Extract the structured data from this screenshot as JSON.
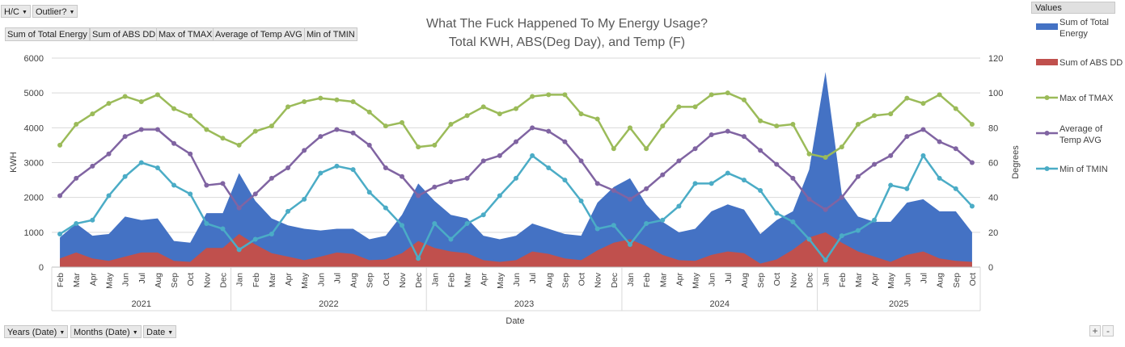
{
  "filters": {
    "hc_label": "H/C",
    "outlier_label": "Outlier?",
    "years_label": "Years (Date)",
    "months_label": "Months (Date)",
    "date_label": "Date"
  },
  "value_buttons": [
    "Sum of Total Energy",
    "Sum of ABS DD",
    "Max of TMAX",
    "Average of Temp AVG",
    "Min of TMIN"
  ],
  "legend_header": "Values",
  "zoom": {
    "plus": "+",
    "minus": "-"
  },
  "colors": {
    "energy": "#4472c4",
    "absdd": "#c0504d",
    "tmax": "#9bbb59",
    "tavg": "#8064a2",
    "tmin": "#4bacc6"
  },
  "chart_data": {
    "type": "area+line",
    "title_line1": "What The Fuck Happened To My Energy Usage?",
    "title_line2": "Total KWH, ABS(Deg Day), and Temp (F)",
    "xlabel": "Date",
    "ylabel_left": "KWH",
    "ylabel_right": "Degrees",
    "ylim_left": [
      0,
      6000
    ],
    "ylim_right": [
      0,
      120
    ],
    "yticks_left": [
      "0",
      "1000",
      "2000",
      "3000",
      "4000",
      "5000",
      "6000"
    ],
    "yticks_right": [
      "0",
      "20",
      "40",
      "60",
      "80",
      "100",
      "120"
    ],
    "months": [
      "Feb",
      "Mar",
      "Apr",
      "May",
      "Jun",
      "Jul",
      "Aug",
      "Sep",
      "Oct",
      "Nov",
      "Dec",
      "Jan",
      "Feb",
      "Mar",
      "Apr",
      "May",
      "Jun",
      "Jul",
      "Aug",
      "Sep",
      "Oct",
      "Nov",
      "Dec",
      "Jan",
      "Feb",
      "Mar",
      "Apr",
      "May",
      "Jun",
      "Jul",
      "Aug",
      "Sep",
      "Oct",
      "Nov",
      "Dec",
      "Jan",
      "Feb",
      "Mar",
      "Apr",
      "May",
      "Jun",
      "Jul",
      "Aug",
      "Sep",
      "Oct",
      "Nov",
      "Dec",
      "Jan",
      "Feb",
      "Mar",
      "Apr",
      "May",
      "Jun",
      "Jul",
      "Aug",
      "Sep",
      "Oct"
    ],
    "years": [
      {
        "label": "2021",
        "start": 0,
        "count": 11
      },
      {
        "label": "2022",
        "start": 11,
        "count": 12
      },
      {
        "label": "2023",
        "start": 23,
        "count": 12
      },
      {
        "label": "2024",
        "start": 35,
        "count": 12
      },
      {
        "label": "2025",
        "start": 47,
        "count": 10
      }
    ],
    "series": [
      {
        "name": "Sum of Total Energy",
        "legend": [
          "Sum of Total",
          "Energy"
        ],
        "type": "area",
        "axis": "left",
        "color": "#4472c4",
        "values": [
          850,
          1250,
          900,
          950,
          1450,
          1350,
          1400,
          750,
          700,
          1550,
          1550,
          2700,
          1900,
          1400,
          1200,
          1100,
          1050,
          1100,
          1100,
          800,
          900,
          1500,
          2400,
          1900,
          1500,
          1400,
          900,
          800,
          900,
          1250,
          1100,
          950,
          900,
          1850,
          2300,
          2550,
          1800,
          1300,
          1000,
          1100,
          1600,
          1800,
          1650,
          950,
          1350,
          1600,
          2800,
          5600,
          2100,
          1450,
          1300,
          1300,
          1850,
          1950,
          1600,
          1600,
          1000
        ]
      },
      {
        "name": "Sum of ABS DD",
        "legend": [
          "Sum of ABS DD"
        ],
        "type": "area",
        "axis": "left",
        "color": "#c0504d",
        "values": [
          250,
          420,
          250,
          180,
          300,
          420,
          420,
          180,
          150,
          550,
          550,
          950,
          650,
          400,
          300,
          200,
          300,
          420,
          380,
          200,
          220,
          400,
          750,
          550,
          450,
          400,
          200,
          150,
          200,
          450,
          380,
          250,
          200,
          480,
          700,
          800,
          600,
          350,
          200,
          180,
          350,
          450,
          400,
          100,
          220,
          500,
          850,
          1000,
          700,
          450,
          300,
          150,
          350,
          450,
          250,
          180,
          150
        ]
      },
      {
        "name": "Max of TMAX",
        "legend": [
          "Max of TMAX"
        ],
        "type": "line",
        "axis": "right",
        "color": "#9bbb59",
        "values": [
          70,
          82,
          88,
          94,
          98,
          95,
          99,
          91,
          87,
          79,
          74,
          70,
          78,
          81,
          92,
          95,
          97,
          96,
          95,
          89,
          81,
          83,
          69,
          70,
          82,
          87,
          92,
          88,
          91,
          98,
          99,
          99,
          88,
          85,
          68,
          80,
          68,
          81,
          92,
          92,
          99,
          100,
          96,
          84,
          81,
          82,
          65,
          63,
          69,
          82,
          87,
          88,
          97,
          94,
          99,
          91,
          82
        ]
      },
      {
        "name": "Average of Temp AVG",
        "legend": [
          "Average of",
          "Temp AVG"
        ],
        "type": "line",
        "axis": "right",
        "color": "#8064a2",
        "values": [
          41,
          51,
          58,
          65,
          75,
          79,
          79,
          71,
          65,
          47,
          48,
          34,
          42,
          51,
          57,
          67,
          75,
          79,
          77,
          70,
          57,
          52,
          41,
          46,
          49,
          51,
          61,
          64,
          72,
          80,
          78,
          72,
          61,
          48,
          44,
          39,
          45,
          53,
          61,
          68,
          76,
          78,
          75,
          67,
          59,
          51,
          39,
          33,
          40,
          52,
          59,
          64,
          75,
          79,
          72,
          68,
          60
        ]
      },
      {
        "name": "Min of TMIN",
        "legend": [
          "Min of TMIN"
        ],
        "type": "line",
        "axis": "right",
        "color": "#4bacc6",
        "values": [
          19,
          25,
          27,
          41,
          52,
          60,
          57,
          47,
          42,
          25,
          22,
          10,
          16,
          19,
          32,
          39,
          54,
          58,
          56,
          43,
          34,
          24,
          5,
          25,
          16,
          25,
          30,
          41,
          51,
          64,
          57,
          50,
          38,
          22,
          24,
          13,
          25,
          27,
          35,
          48,
          48,
          54,
          50,
          44,
          31,
          26,
          16,
          4,
          18,
          21,
          27,
          47,
          45,
          64,
          51,
          45,
          35
        ]
      }
    ]
  }
}
